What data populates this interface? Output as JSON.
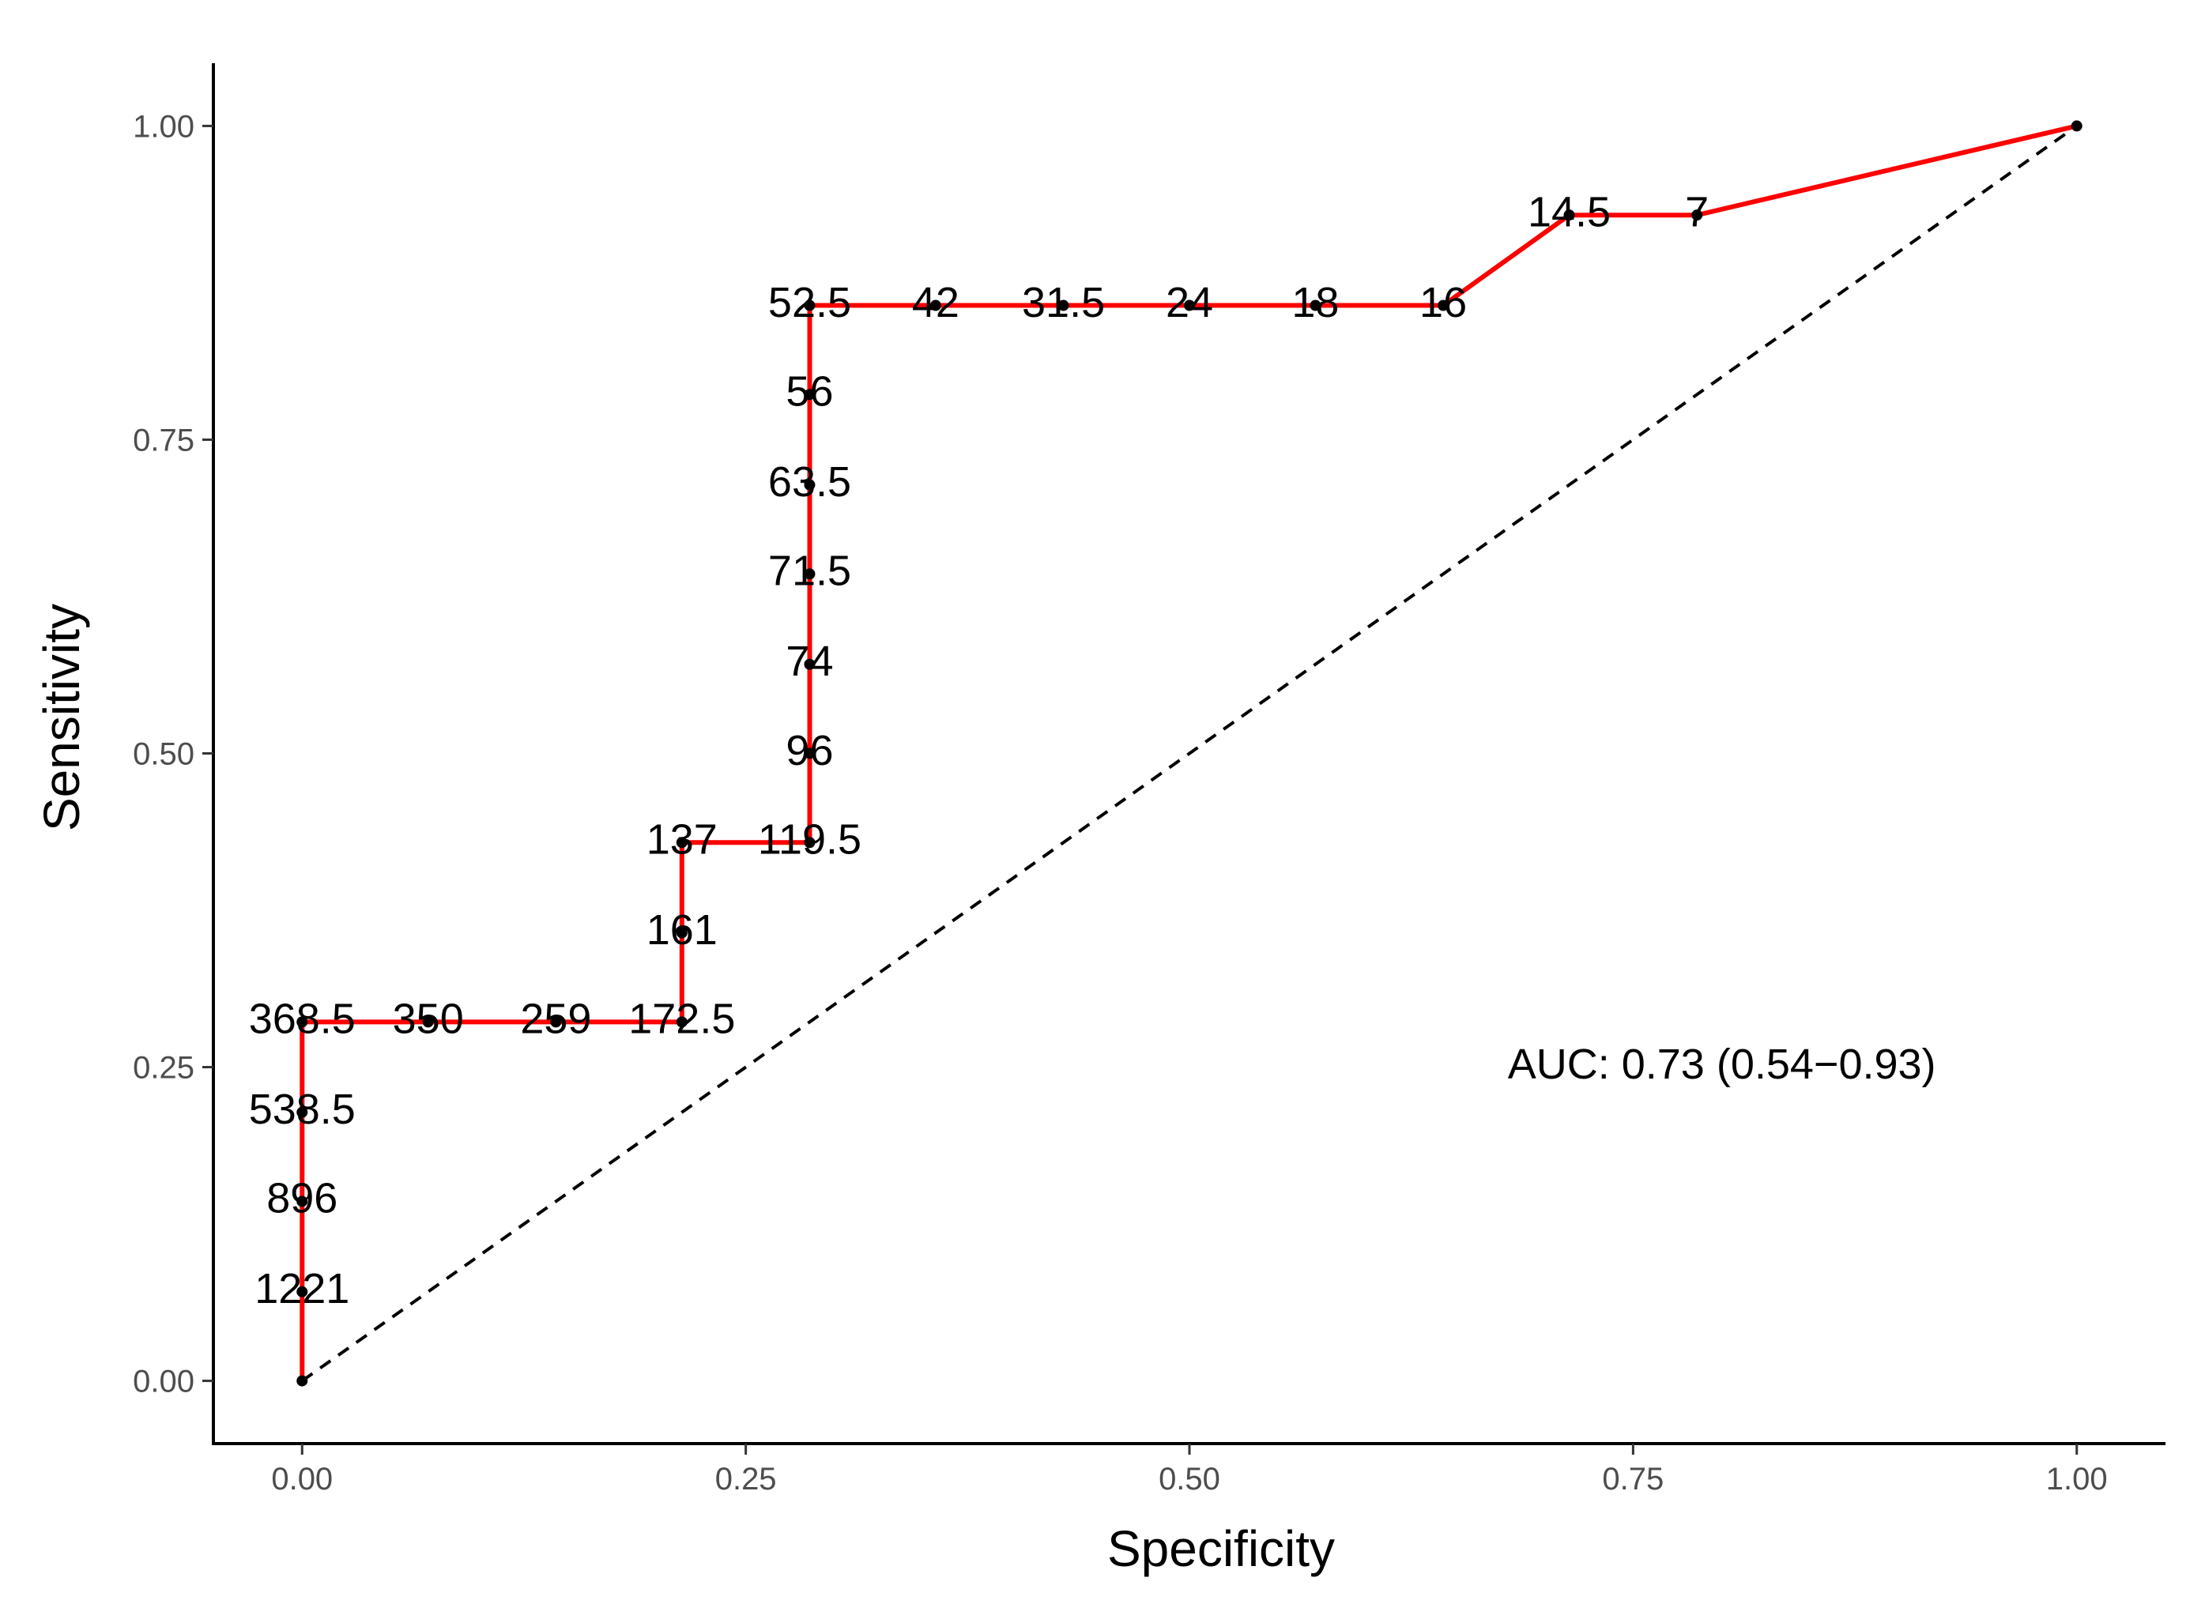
{
  "chart_data": {
    "type": "line",
    "title": "",
    "xlabel": "Specificity",
    "ylabel": "Sensitivity",
    "xlim": [
      -0.05,
      1.05
    ],
    "ylim": [
      -0.05,
      1.05
    ],
    "x_ticks": [
      0.0,
      0.25,
      0.5,
      0.75,
      1.0
    ],
    "x_tick_labels": [
      "0.00",
      "0.25",
      "0.50",
      "0.75",
      "1.00"
    ],
    "y_ticks": [
      0.0,
      0.25,
      0.5,
      0.75,
      1.0
    ],
    "y_tick_labels": [
      "0.00",
      "0.25",
      "0.50",
      "0.75",
      "1.00"
    ],
    "grid": false,
    "annotation": "AUC: 0.73 (0.54−0.93)",
    "annotation_position": {
      "x": 0.8,
      "y": 0.25
    },
    "reference_line": {
      "x": [
        0,
        1
      ],
      "y": [
        0,
        1
      ],
      "style": "dashed",
      "color": "#000000"
    },
    "line_color": "#ff0000",
    "point_color": "#000000",
    "series": [
      {
        "points": [
          {
            "x": 0.0,
            "y": 0.0,
            "label": ""
          },
          {
            "x": 0.0,
            "y": 0.071,
            "label": "1221"
          },
          {
            "x": 0.0,
            "y": 0.143,
            "label": "896"
          },
          {
            "x": 0.0,
            "y": 0.214,
            "label": "538.5"
          },
          {
            "x": 0.0,
            "y": 0.286,
            "label": "368.5"
          },
          {
            "x": 0.071,
            "y": 0.286,
            "label": "350"
          },
          {
            "x": 0.143,
            "y": 0.286,
            "label": "259"
          },
          {
            "x": 0.214,
            "y": 0.286,
            "label": "172.5"
          },
          {
            "x": 0.214,
            "y": 0.357,
            "label": "161"
          },
          {
            "x": 0.214,
            "y": 0.429,
            "label": "137"
          },
          {
            "x": 0.286,
            "y": 0.429,
            "label": "119.5"
          },
          {
            "x": 0.286,
            "y": 0.5,
            "label": "96"
          },
          {
            "x": 0.286,
            "y": 0.571,
            "label": "74"
          },
          {
            "x": 0.286,
            "y": 0.643,
            "label": "71.5"
          },
          {
            "x": 0.286,
            "y": 0.714,
            "label": "63.5"
          },
          {
            "x": 0.286,
            "y": 0.786,
            "label": "56"
          },
          {
            "x": 0.286,
            "y": 0.857,
            "label": "52.5"
          },
          {
            "x": 0.357,
            "y": 0.857,
            "label": "42"
          },
          {
            "x": 0.429,
            "y": 0.857,
            "label": "31.5"
          },
          {
            "x": 0.5,
            "y": 0.857,
            "label": "24"
          },
          {
            "x": 0.571,
            "y": 0.857,
            "label": "18"
          },
          {
            "x": 0.643,
            "y": 0.857,
            "label": "16"
          },
          {
            "x": 0.714,
            "y": 0.929,
            "label": "14.5"
          },
          {
            "x": 0.786,
            "y": 0.929,
            "label": "7"
          },
          {
            "x": 1.0,
            "y": 1.0,
            "label": ""
          }
        ]
      }
    ]
  }
}
